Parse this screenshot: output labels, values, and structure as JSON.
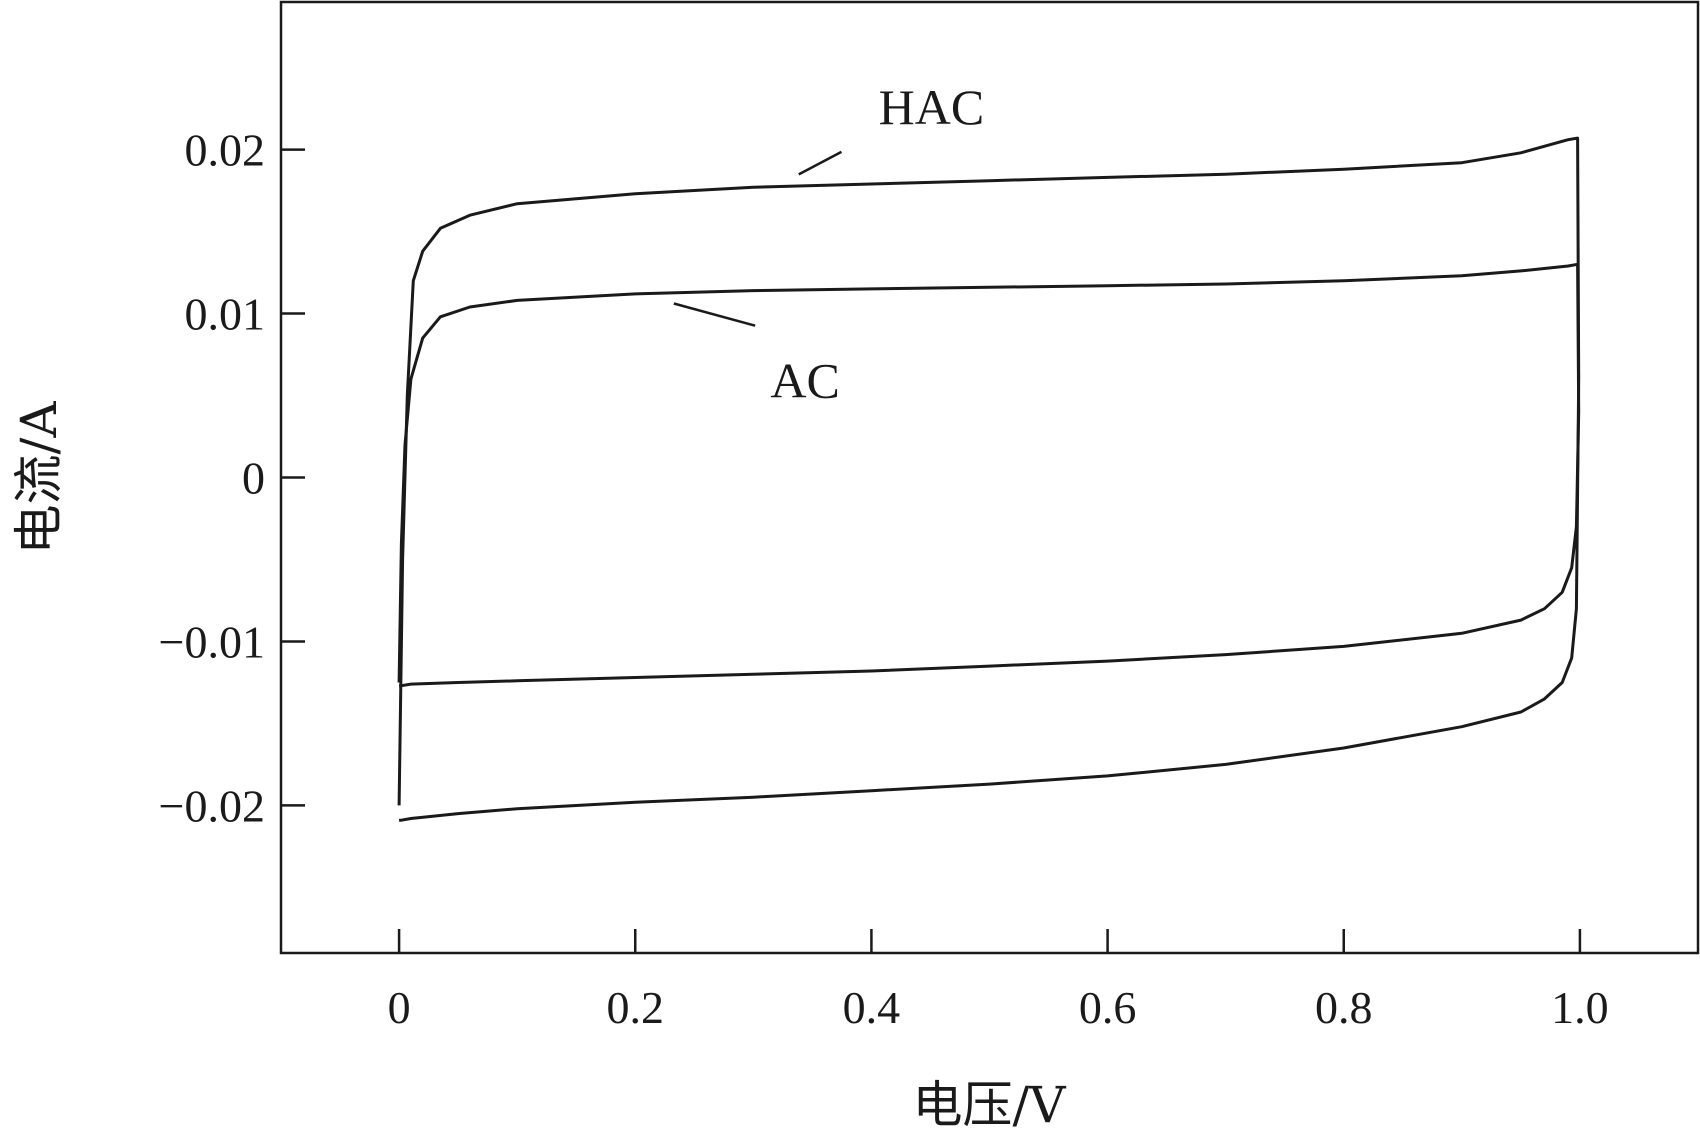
{
  "chart_data": {
    "type": "line",
    "xlabel": "电压/V",
    "ylabel": "电流/A",
    "xlim": [
      -0.1,
      1.1
    ],
    "ylim": [
      -0.029,
      0.029
    ],
    "x_ticks": [
      {
        "value": 0,
        "label": "0"
      },
      {
        "value": 0.2,
        "label": "0.2"
      },
      {
        "value": 0.4,
        "label": "0.4"
      },
      {
        "value": 0.6,
        "label": "0.6"
      },
      {
        "value": 0.8,
        "label": "0.8"
      },
      {
        "value": 1.0,
        "label": "1.0"
      }
    ],
    "y_ticks": [
      {
        "value": 0.02,
        "label": "0.02"
      },
      {
        "value": 0.01,
        "label": "0.01"
      },
      {
        "value": 0,
        "label": "0"
      },
      {
        "value": -0.01,
        "label": "−0.01"
      },
      {
        "value": -0.02,
        "label": "−0.02"
      }
    ],
    "grid": false,
    "series": [
      {
        "name": "HAC",
        "label_anchor": [
          0.4,
          0.0223
        ],
        "label_target": [
          0.33,
          0.018
        ],
        "x": [
          0,
          0.003,
          0.007,
          0.012,
          0.02,
          0.035,
          0.06,
          0.1,
          0.2,
          0.3,
          0.4,
          0.5,
          0.6,
          0.7,
          0.8,
          0.9,
          0.95,
          0.99,
          0.998,
          0.999,
          0.997,
          0.993,
          0.985,
          0.97,
          0.95,
          0.9,
          0.8,
          0.7,
          0.6,
          0.5,
          0.4,
          0.3,
          0.2,
          0.1,
          0.05,
          0.01,
          0.002,
          0
        ],
        "y": [
          -0.02,
          -0.005,
          0.005,
          0.012,
          0.0138,
          0.0152,
          0.016,
          0.0167,
          0.0173,
          0.0177,
          0.0179,
          0.0181,
          0.0183,
          0.0185,
          0.0188,
          0.0192,
          0.0198,
          0.0206,
          0.0207,
          0.006,
          -0.008,
          -0.011,
          -0.0125,
          -0.0135,
          -0.0143,
          -0.0152,
          -0.0165,
          -0.0175,
          -0.0182,
          -0.0187,
          -0.0191,
          -0.0195,
          -0.0198,
          -0.0202,
          -0.0205,
          -0.0208,
          -0.0209,
          -0.0209
        ]
      },
      {
        "name": "AC",
        "label_anchor": [
          0.31,
          0.0056
        ],
        "label_target": [
          0.22,
          0.0111
        ],
        "x": [
          0,
          0.002,
          0.005,
          0.01,
          0.02,
          0.035,
          0.06,
          0.1,
          0.2,
          0.3,
          0.4,
          0.5,
          0.6,
          0.7,
          0.8,
          0.9,
          0.95,
          0.99,
          0.998,
          0.999,
          0.997,
          0.993,
          0.985,
          0.97,
          0.95,
          0.9,
          0.8,
          0.7,
          0.6,
          0.5,
          0.4,
          0.3,
          0.2,
          0.1,
          0.05,
          0.01,
          0.002,
          0
        ],
        "y": [
          -0.0125,
          -0.004,
          0.002,
          0.006,
          0.0085,
          0.0098,
          0.0104,
          0.0108,
          0.0112,
          0.0114,
          0.0115,
          0.0116,
          0.0117,
          0.0118,
          0.012,
          0.0123,
          0.0126,
          0.0129,
          0.013,
          0.004,
          -0.003,
          -0.0055,
          -0.007,
          -0.008,
          -0.0087,
          -0.0095,
          -0.0103,
          -0.0108,
          -0.0112,
          -0.0115,
          -0.0118,
          -0.012,
          -0.0122,
          -0.0124,
          -0.0125,
          -0.0126,
          -0.0127,
          -0.0127
        ]
      }
    ]
  }
}
